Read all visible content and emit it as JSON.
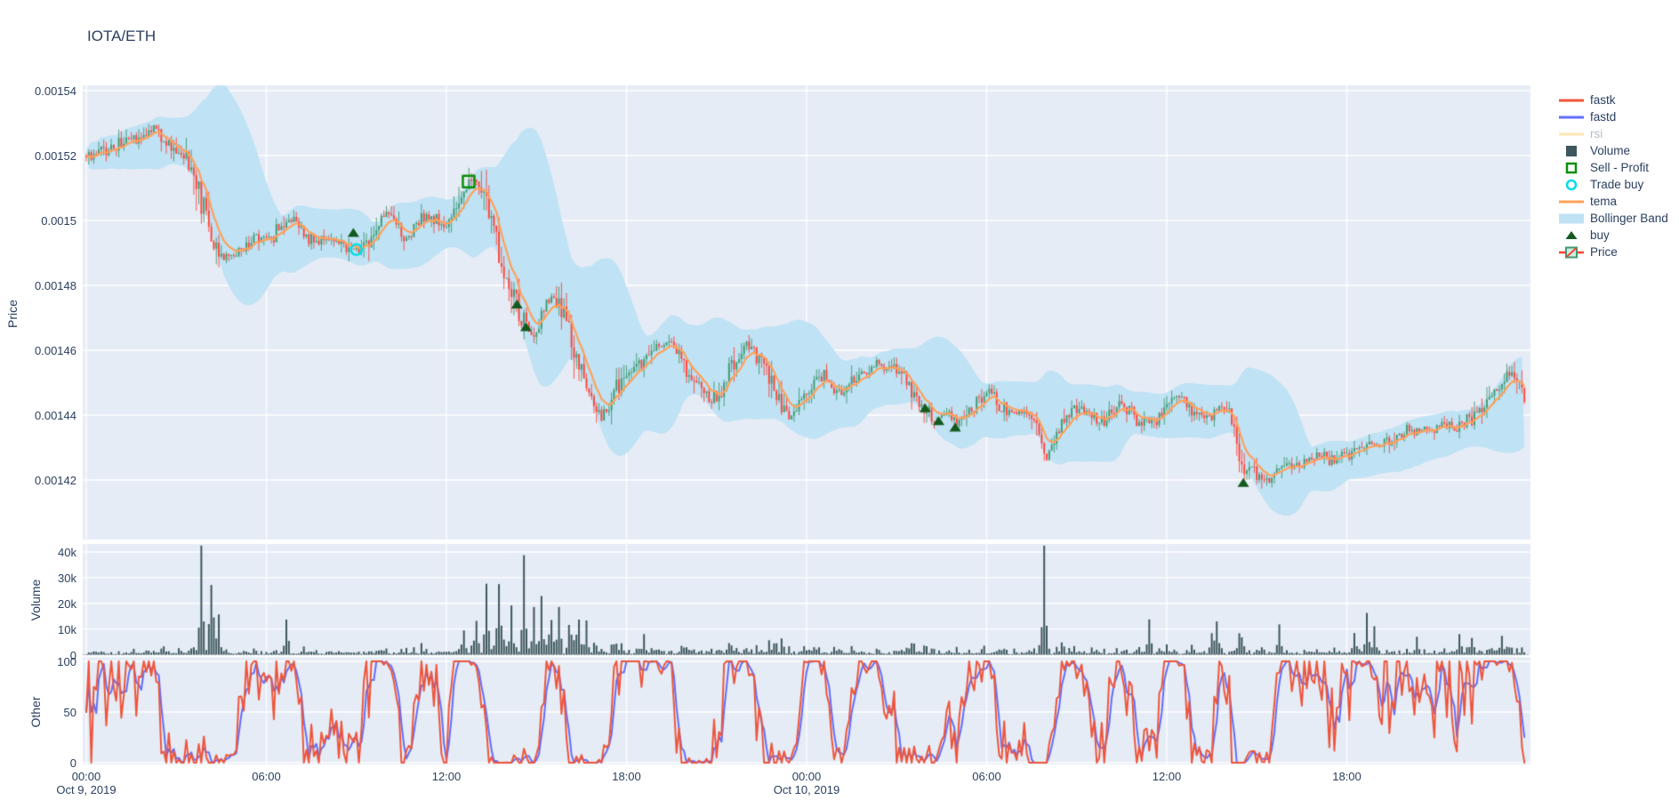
{
  "window": {
    "title": "IOTA/ETH"
  },
  "colors": {
    "paper": "#ffffff",
    "plot_background": "#E5ECF6",
    "gridline": "#ffffff",
    "text": "#2a3f5f",
    "dim_text": "#b5bcc9",
    "candle_increasing": "#3D9970",
    "candle_decreasing": "#FF4136",
    "tema": "#FFA15A",
    "bollinger_fill": "#BFE2F4",
    "volume_bar": "#3D575C",
    "fastk": "#EF553B",
    "fastd": "#636EFA",
    "rsi": "#FECB52",
    "buy_marker": "#135A1E",
    "sell_profit_marker": "#0A8F0A",
    "trade_buy_marker": "#00DDE8"
  },
  "legend": {
    "items": [
      {
        "label": "fastk",
        "glyph": "line",
        "color": "#EF553B",
        "dim": false
      },
      {
        "label": "fastd",
        "glyph": "line",
        "color": "#636EFA",
        "dim": false
      },
      {
        "label": "rsi",
        "glyph": "line",
        "color": "#FECB52",
        "dim": true
      },
      {
        "label": "Volume",
        "glyph": "square",
        "color": "#3D575C",
        "dim": false
      },
      {
        "label": "Sell - Profit",
        "glyph": "square-open",
        "color": "#0A8F0A",
        "dim": false
      },
      {
        "label": "Trade buy",
        "glyph": "circle-open",
        "color": "#00DDE8",
        "dim": false
      },
      {
        "label": "tema",
        "glyph": "line",
        "color": "#FFA15A",
        "dim": false
      },
      {
        "label": "Bollinger Band",
        "glyph": "band",
        "color": "#BFE2F4",
        "dim": false
      },
      {
        "label": "buy",
        "glyph": "triangle",
        "color": "#135A1E",
        "dim": false
      },
      {
        "label": "Price",
        "glyph": "candle",
        "color": "#3D9970",
        "dim": false
      }
    ]
  },
  "axes": {
    "price": {
      "title": "Price",
      "ticks": [
        {
          "label": "0.00154",
          "value": 1540
        },
        {
          "label": "0.00152",
          "value": 1520
        },
        {
          "label": "0.0015",
          "value": 1500
        },
        {
          "label": "0.00148",
          "value": 1480
        },
        {
          "label": "0.00146",
          "value": 1460
        },
        {
          "label": "0.00144",
          "value": 1440
        },
        {
          "label": "0.00142",
          "value": 1420
        }
      ]
    },
    "volume": {
      "title": "Volume",
      "ticks": [
        {
          "label": "40k",
          "value": 40000
        },
        {
          "label": "30k",
          "value": 30000
        },
        {
          "label": "20k",
          "value": 20000
        },
        {
          "label": "10k",
          "value": 10000
        },
        {
          "label": "0",
          "value": 0
        }
      ]
    },
    "other": {
      "title": "Other",
      "ticks": [
        {
          "label": "100",
          "value": 100
        },
        {
          "label": "50",
          "value": 50
        },
        {
          "label": "0",
          "value": 0
        }
      ]
    },
    "x": {
      "time_ticks": [
        {
          "hour": 0,
          "label": "00:00"
        },
        {
          "hour": 6,
          "label": "06:00"
        },
        {
          "hour": 12,
          "label": "12:00"
        },
        {
          "hour": 18,
          "label": "18:00"
        },
        {
          "hour": 24,
          "label": "00:00"
        },
        {
          "hour": 30,
          "label": "06:00"
        },
        {
          "hour": 36,
          "label": "12:00"
        },
        {
          "hour": 42,
          "label": "18:00"
        }
      ],
      "date_ticks": [
        {
          "hour": 0,
          "label": "Oct 9, 2019"
        },
        {
          "hour": 24,
          "label": "Oct 10, 2019"
        }
      ]
    }
  },
  "chart_data": [
    {
      "type": "candlestick",
      "name": "Price",
      "pair": "IOTA/ETH",
      "x_range_hours": [
        0,
        48
      ],
      "interval_minutes": 5,
      "ylim_micro": [
        1402,
        1542
      ],
      "price_scale": 1e-06,
      "close_anchors_hour_micro": [
        [
          0,
          1520
        ],
        [
          0.5,
          1521
        ],
        [
          1,
          1523
        ],
        [
          1.5,
          1525
        ],
        [
          2,
          1527
        ],
        [
          2.3,
          1528
        ],
        [
          2.7,
          1524
        ],
        [
          3.1,
          1521
        ],
        [
          3.5,
          1517
        ],
        [
          3.8,
          1508
        ],
        [
          4.1,
          1497
        ],
        [
          4.4,
          1491
        ],
        [
          4.8,
          1489
        ],
        [
          5.2,
          1492
        ],
        [
          5.7,
          1494
        ],
        [
          6.2,
          1495
        ],
        [
          6.6,
          1499
        ],
        [
          6.9,
          1500
        ],
        [
          7.2,
          1496
        ],
        [
          7.6,
          1493
        ],
        [
          8,
          1495
        ],
        [
          8.5,
          1494
        ],
        [
          8.8,
          1492
        ],
        [
          9.1,
          1490
        ],
        [
          9.4,
          1494
        ],
        [
          9.8,
          1499
        ],
        [
          10.1,
          1502
        ],
        [
          10.4,
          1498
        ],
        [
          10.7,
          1494
        ],
        [
          11,
          1498
        ],
        [
          11.3,
          1502
        ],
        [
          11.6,
          1500
        ],
        [
          11.9,
          1497
        ],
        [
          12.2,
          1502
        ],
        [
          12.5,
          1508
        ],
        [
          12.75,
          1512
        ],
        [
          12.95,
          1514
        ],
        [
          13.2,
          1510
        ],
        [
          13.5,
          1500
        ],
        [
          13.8,
          1487
        ],
        [
          14.1,
          1478
        ],
        [
          14.45,
          1472
        ],
        [
          14.7,
          1466
        ],
        [
          14.9,
          1464
        ],
        [
          15.15,
          1470
        ],
        [
          15.45,
          1476
        ],
        [
          15.7,
          1474
        ],
        [
          16,
          1468
        ],
        [
          16.3,
          1458
        ],
        [
          16.6,
          1449
        ],
        [
          16.9,
          1443
        ],
        [
          17.2,
          1439
        ],
        [
          17.5,
          1444
        ],
        [
          17.8,
          1450
        ],
        [
          18.1,
          1453
        ],
        [
          18.45,
          1456
        ],
        [
          18.8,
          1459
        ],
        [
          19.2,
          1462
        ],
        [
          19.5,
          1461
        ],
        [
          19.8,
          1458
        ],
        [
          20.1,
          1453
        ],
        [
          20.45,
          1449
        ],
        [
          20.8,
          1444
        ],
        [
          21.1,
          1448
        ],
        [
          21.5,
          1455
        ],
        [
          21.9,
          1460
        ],
        [
          22.2,
          1461
        ],
        [
          22.5,
          1457
        ],
        [
          22.8,
          1450
        ],
        [
          23.1,
          1444
        ],
        [
          23.4,
          1439
        ],
        [
          23.7,
          1441
        ],
        [
          24,
          1446
        ],
        [
          24.3,
          1450
        ],
        [
          24.6,
          1452
        ],
        [
          24.9,
          1447
        ],
        [
          25.2,
          1448
        ],
        [
          25.6,
          1452
        ],
        [
          26,
          1454
        ],
        [
          26.5,
          1455
        ],
        [
          27,
          1455
        ],
        [
          27.4,
          1450
        ],
        [
          27.8,
          1444
        ],
        [
          28.1,
          1441
        ],
        [
          28.4,
          1438
        ],
        [
          28.7,
          1441
        ],
        [
          29,
          1437
        ],
        [
          29.3,
          1440
        ],
        [
          29.6,
          1444
        ],
        [
          29.9,
          1447
        ],
        [
          30.2,
          1446
        ],
        [
          30.5,
          1443
        ],
        [
          30.8,
          1441
        ],
        [
          31.1,
          1442
        ],
        [
          31.4,
          1441
        ],
        [
          31.7,
          1435
        ],
        [
          32,
          1428
        ],
        [
          32.3,
          1433
        ],
        [
          32.6,
          1438
        ],
        [
          32.9,
          1441
        ],
        [
          33.3,
          1442
        ],
        [
          33.6,
          1440
        ],
        [
          33.9,
          1438
        ],
        [
          34.2,
          1441
        ],
        [
          34.5,
          1443
        ],
        [
          34.8,
          1441
        ],
        [
          35.1,
          1438
        ],
        [
          35.4,
          1437
        ],
        [
          35.7,
          1440
        ],
        [
          36,
          1443
        ],
        [
          36.3,
          1446
        ],
        [
          36.6,
          1444
        ],
        [
          36.9,
          1441
        ],
        [
          37.2,
          1439
        ],
        [
          37.5,
          1441
        ],
        [
          37.8,
          1443
        ],
        [
          38.1,
          1441
        ],
        [
          38.35,
          1430
        ],
        [
          38.55,
          1421
        ],
        [
          38.8,
          1424
        ],
        [
          39.1,
          1421
        ],
        [
          39.4,
          1419
        ],
        [
          39.7,
          1423
        ],
        [
          40,
          1425
        ],
        [
          40.4,
          1424
        ],
        [
          40.8,
          1426
        ],
        [
          41.2,
          1427
        ],
        [
          41.6,
          1426
        ],
        [
          42,
          1428
        ],
        [
          42.4,
          1430
        ],
        [
          42.8,
          1432
        ],
        [
          43.2,
          1431
        ],
        [
          43.6,
          1433
        ],
        [
          44,
          1435
        ],
        [
          44.4,
          1434
        ],
        [
          44.8,
          1436
        ],
        [
          45.2,
          1437
        ],
        [
          45.6,
          1436
        ],
        [
          46,
          1438
        ],
        [
          46.4,
          1441
        ],
        [
          46.8,
          1445
        ],
        [
          47.1,
          1449
        ],
        [
          47.5,
          1453
        ],
        [
          47.8,
          1448
        ],
        [
          48,
          1445
        ]
      ],
      "overlays": [
        {
          "name": "tema",
          "color": "#FFA15A"
        },
        {
          "name": "Bollinger Band",
          "color": "#BFE2F4",
          "window": 30,
          "stdev_mult": 2
        }
      ],
      "markers": {
        "buy_hour_micro": [
          [
            8.9,
            1496
          ],
          [
            14.35,
            1474
          ],
          [
            14.65,
            1467
          ],
          [
            27.95,
            1442
          ],
          [
            28.4,
            1438
          ],
          [
            28.95,
            1436
          ],
          [
            38.55,
            1419
          ]
        ],
        "trade_buy_hour_micro": [
          [
            9.0,
            1491
          ]
        ],
        "sell_profit_hour_micro": [
          [
            12.74,
            1512
          ]
        ]
      },
      "synth": {
        "seed": 42,
        "candles": 576
      }
    },
    {
      "type": "bar",
      "name": "Volume",
      "ylim": [
        0,
        43300
      ],
      "baseline_range": [
        200,
        2500
      ],
      "spikes_hour_value": [
        [
          3.82,
          41000
        ],
        [
          4.15,
          25000
        ],
        [
          4.41,
          11000
        ],
        [
          6.64,
          13500
        ],
        [
          12.62,
          8000
        ],
        [
          13.01,
          12000
        ],
        [
          13.3,
          26000
        ],
        [
          13.72,
          20000
        ],
        [
          14.16,
          15000
        ],
        [
          14.58,
          36000
        ],
        [
          14.9,
          15000
        ],
        [
          15.2,
          18500
        ],
        [
          15.5,
          12000
        ],
        [
          15.73,
          17500
        ],
        [
          16.09,
          10000
        ],
        [
          16.39,
          8200
        ],
        [
          16.68,
          7000
        ],
        [
          18.55,
          6200
        ],
        [
          31.91,
          39500
        ],
        [
          35.44,
          12800
        ],
        [
          37.54,
          7200
        ],
        [
          37.66,
          11700
        ],
        [
          39.73,
          9200
        ],
        [
          42.25,
          7500
        ],
        [
          42.64,
          14800
        ],
        [
          42.9,
          9800
        ],
        [
          44.3,
          6500
        ],
        [
          45.72,
          7300
        ],
        [
          46.16,
          6200
        ],
        [
          47.2,
          6800
        ]
      ]
    },
    {
      "type": "line",
      "name": "Other",
      "ylim": [
        0,
        100
      ],
      "series": [
        {
          "name": "fastk",
          "color": "#EF553B"
        },
        {
          "name": "fastd",
          "color": "#636EFA"
        }
      ],
      "synth": {
        "stoch_window": 12,
        "smooth": 3
      }
    }
  ]
}
